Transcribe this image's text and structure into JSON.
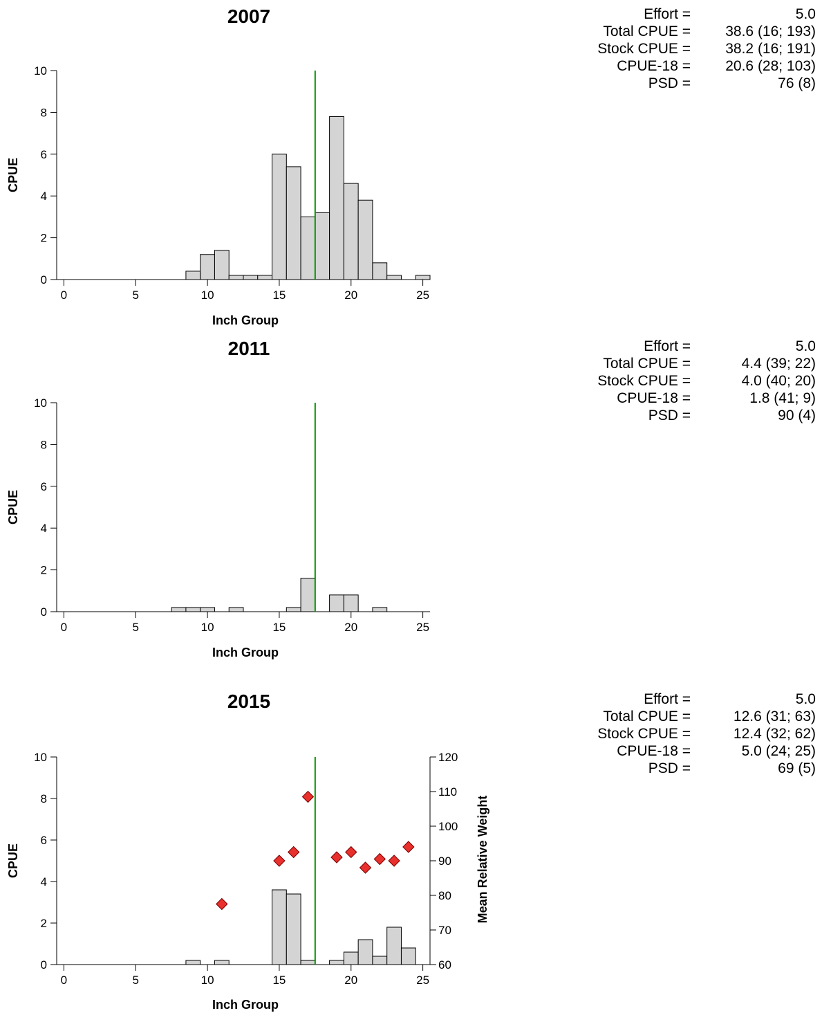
{
  "colors": {
    "bar_fill": "#d4d4d4",
    "bar_stroke": "#000000",
    "reference_line": "#009900",
    "marker_fill": "#e8302c",
    "marker_stroke": "#7a0000"
  },
  "chart_data": [
    {
      "type": "bar",
      "title": "2007",
      "xlabel": "Inch Group",
      "ylabel": "CPUE",
      "xlim": [
        0,
        25
      ],
      "ylim": [
        0,
        10
      ],
      "x_ticks": [
        "0",
        "5",
        "10",
        "15",
        "20",
        "25"
      ],
      "y_ticks": [
        "0",
        "2",
        "4",
        "6",
        "8",
        "10"
      ],
      "reference_line_x": 17.5,
      "bars": [
        {
          "x": 9,
          "value": 0.4
        },
        {
          "x": 10,
          "value": 1.2
        },
        {
          "x": 11,
          "value": 1.4
        },
        {
          "x": 12,
          "value": 0.2
        },
        {
          "x": 13,
          "value": 0.2
        },
        {
          "x": 14,
          "value": 0.2
        },
        {
          "x": 15,
          "value": 6.0
        },
        {
          "x": 16,
          "value": 5.4
        },
        {
          "x": 17,
          "value": 3.0
        },
        {
          "x": 18,
          "value": 3.2
        },
        {
          "x": 19,
          "value": 7.8
        },
        {
          "x": 20,
          "value": 4.6
        },
        {
          "x": 21,
          "value": 3.8
        },
        {
          "x": 22,
          "value": 0.8
        },
        {
          "x": 23,
          "value": 0.2
        },
        {
          "x": 25,
          "value": 0.2
        }
      ],
      "stats": [
        {
          "label": "Effort =",
          "value": "5.0"
        },
        {
          "label": "Total CPUE =",
          "value": "38.6 (16; 193)"
        },
        {
          "label": "Stock CPUE =",
          "value": "38.2 (16; 191)"
        },
        {
          "label": "CPUE-18 =",
          "value": "20.6 (28; 103)"
        },
        {
          "label": "PSD =",
          "value": "76 (8)"
        }
      ]
    },
    {
      "type": "bar",
      "title": "2011",
      "xlabel": "Inch Group",
      "ylabel": "CPUE",
      "xlim": [
        0,
        25
      ],
      "ylim": [
        0,
        10
      ],
      "x_ticks": [
        "0",
        "5",
        "10",
        "15",
        "20",
        "25"
      ],
      "y_ticks": [
        "0",
        "2",
        "4",
        "6",
        "8",
        "10"
      ],
      "reference_line_x": 17.5,
      "bars": [
        {
          "x": 8,
          "value": 0.2
        },
        {
          "x": 9,
          "value": 0.2
        },
        {
          "x": 10,
          "value": 0.2
        },
        {
          "x": 12,
          "value": 0.2
        },
        {
          "x": 16,
          "value": 0.2
        },
        {
          "x": 17,
          "value": 1.6
        },
        {
          "x": 19,
          "value": 0.8
        },
        {
          "x": 20,
          "value": 0.8
        },
        {
          "x": 22,
          "value": 0.2
        }
      ],
      "stats": [
        {
          "label": "Effort =",
          "value": "5.0"
        },
        {
          "label": "Total CPUE =",
          "value": "4.4 (39; 22)"
        },
        {
          "label": "Stock CPUE =",
          "value": "4.0 (40; 20)"
        },
        {
          "label": "CPUE-18 =",
          "value": "1.8 (41; 9)"
        },
        {
          "label": "PSD =",
          "value": "90 (4)"
        }
      ]
    },
    {
      "type": "bar",
      "title": "2015",
      "xlabel": "Inch Group",
      "ylabel": "CPUE",
      "y2label": "Mean Relative Weight",
      "xlim": [
        0,
        25
      ],
      "ylim": [
        0,
        10
      ],
      "y2lim": [
        60,
        120
      ],
      "x_ticks": [
        "0",
        "5",
        "10",
        "15",
        "20",
        "25"
      ],
      "y_ticks": [
        "0",
        "2",
        "4",
        "6",
        "8",
        "10"
      ],
      "y2_ticks": [
        "60",
        "70",
        "80",
        "90",
        "100",
        "110",
        "120"
      ],
      "reference_line_x": 17.5,
      "bars": [
        {
          "x": 9,
          "value": 0.2
        },
        {
          "x": 11,
          "value": 0.2
        },
        {
          "x": 15,
          "value": 3.6
        },
        {
          "x": 16,
          "value": 3.4
        },
        {
          "x": 17,
          "value": 0.2
        },
        {
          "x": 19,
          "value": 0.2
        },
        {
          "x": 20,
          "value": 0.6
        },
        {
          "x": 21,
          "value": 1.2
        },
        {
          "x": 22,
          "value": 0.4
        },
        {
          "x": 23,
          "value": 1.8
        },
        {
          "x": 24,
          "value": 0.8
        }
      ],
      "markers": [
        {
          "x": 11,
          "value": 77.5
        },
        {
          "x": 15,
          "value": 90
        },
        {
          "x": 16,
          "value": 92.5
        },
        {
          "x": 17,
          "value": 108.5
        },
        {
          "x": 19,
          "value": 91
        },
        {
          "x": 20,
          "value": 92.5
        },
        {
          "x": 21,
          "value": 88
        },
        {
          "x": 22,
          "value": 90.5
        },
        {
          "x": 23,
          "value": 90
        },
        {
          "x": 24,
          "value": 94
        }
      ],
      "stats": [
        {
          "label": "Effort =",
          "value": "5.0"
        },
        {
          "label": "Total CPUE =",
          "value": "12.6 (31; 63)"
        },
        {
          "label": "Stock CPUE =",
          "value": "12.4 (32; 62)"
        },
        {
          "label": "CPUE-18 =",
          "value": "5.0 (24; 25)"
        },
        {
          "label": "PSD =",
          "value": "69 (5)"
        }
      ]
    }
  ]
}
